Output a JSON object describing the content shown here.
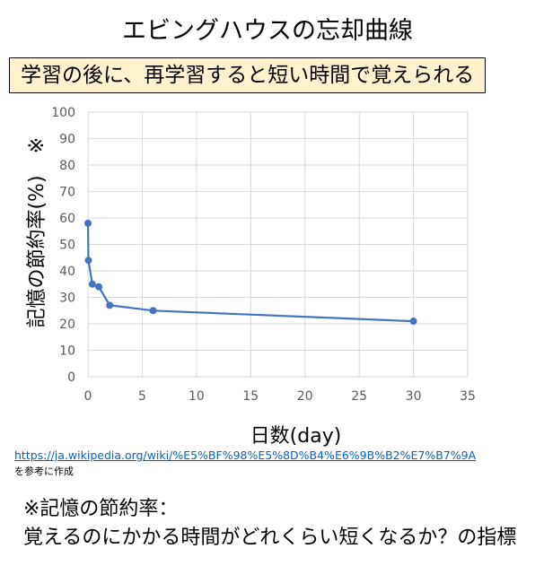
{
  "header": {
    "title": "エビングハウスの忘却曲線",
    "subtitle": "学習の後に、再学習すると短い時間で覚えられる"
  },
  "chart_data": {
    "type": "line",
    "x": [
      0,
      0.04,
      0.4,
      1,
      2,
      6,
      30
    ],
    "values": [
      58,
      44,
      35,
      34,
      27,
      25,
      21
    ],
    "xlabel": "日数(day)",
    "ylabel": "記憶の節約率(%)",
    "ylabel_mark": "※",
    "xlim": [
      0,
      35
    ],
    "ylim": [
      0,
      100
    ],
    "xticks": [
      0,
      5,
      10,
      15,
      20,
      25,
      30,
      35
    ],
    "yticks": [
      0,
      10,
      20,
      30,
      40,
      50,
      60,
      70,
      80,
      90,
      100
    ],
    "grid": true,
    "line_color": "#4472c4",
    "grid_color": "#d9d9d9"
  },
  "source": {
    "url": "https://ja.wikipedia.org/wiki/%E5%BF%98%E5%8D%B4%E6%9B%B2%E7%B7%9A",
    "note": "を参考に作成"
  },
  "footnote": {
    "line1": "※記憶の節約率：",
    "line2": "覚えるのにかかる時間がどれくらい短くなるか？の指標"
  }
}
